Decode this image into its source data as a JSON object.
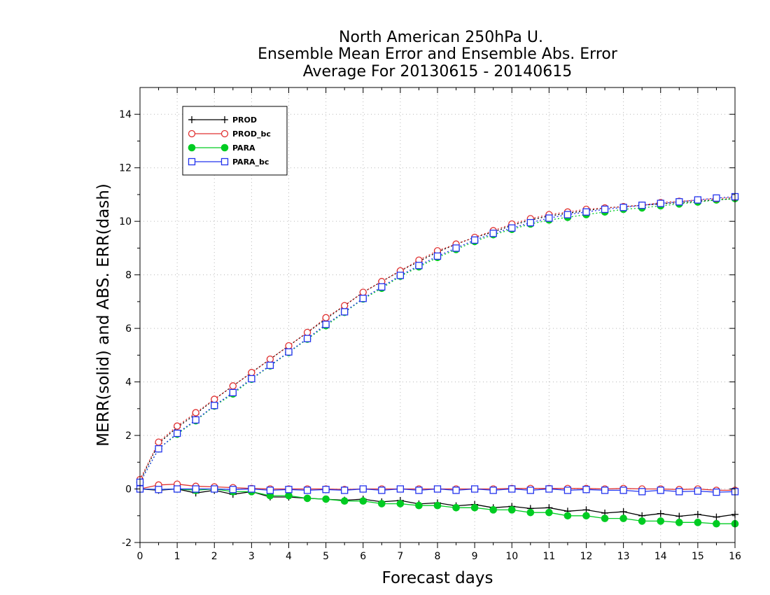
{
  "chart_data": {
    "type": "line",
    "title_lines": [
      "North American 250hPa U.",
      "Ensemble Mean Error and Ensemble Abs. Error",
      "Average For 20130615 - 20140615"
    ],
    "xlabel": "Forecast days",
    "ylabel": "MERR(solid) and ABS. ERR(dash)",
    "xlim": [
      0,
      16
    ],
    "ylim": [
      -2,
      15
    ],
    "xticks": [
      0,
      1,
      2,
      3,
      4,
      5,
      6,
      7,
      8,
      9,
      10,
      11,
      12,
      13,
      14,
      15,
      16
    ],
    "yticks": [
      -2,
      0,
      2,
      4,
      6,
      8,
      10,
      12,
      14
    ],
    "grid": true,
    "legend_position": "top-left",
    "x": [
      0,
      0.5,
      1,
      1.5,
      2,
      2.5,
      3,
      3.5,
      4,
      4.5,
      5,
      5.5,
      6,
      6.5,
      7,
      7.5,
      8,
      8.5,
      9,
      9.5,
      10,
      10.5,
      11,
      11.5,
      12,
      12.5,
      13,
      13.5,
      14,
      14.5,
      15,
      15.5,
      16
    ],
    "series": [
      {
        "name": "PROD",
        "color": "#000000",
        "marker": "plus",
        "mean_error": [
          0.0,
          -0.05,
          0.0,
          -0.15,
          -0.05,
          -0.2,
          -0.1,
          -0.3,
          -0.3,
          -0.35,
          -0.38,
          -0.42,
          -0.38,
          -0.48,
          -0.43,
          -0.56,
          -0.52,
          -0.63,
          -0.58,
          -0.7,
          -0.65,
          -0.73,
          -0.7,
          -0.83,
          -0.78,
          -0.9,
          -0.85,
          -1.0,
          -0.92,
          -1.02,
          -0.95,
          -1.05,
          -0.95
        ],
        "abs_error": [
          0.3,
          1.7,
          2.3,
          2.8,
          3.35,
          3.85,
          4.35,
          4.85,
          5.35,
          5.85,
          6.35,
          6.85,
          7.35,
          7.75,
          8.15,
          8.5,
          8.85,
          9.15,
          9.4,
          9.6,
          9.85,
          10.05,
          10.2,
          10.3,
          10.4,
          10.5,
          10.55,
          10.6,
          10.65,
          10.7,
          10.75,
          10.8,
          10.85
        ]
      },
      {
        "name": "PROD_bc",
        "color": "#e03030",
        "marker": "circle-open",
        "mean_error": [
          0.0,
          0.15,
          0.18,
          0.1,
          0.08,
          0.05,
          0.02,
          0.0,
          0.0,
          0.0,
          0.0,
          -0.02,
          0.0,
          0.0,
          0.0,
          0.0,
          0.0,
          0.0,
          0.0,
          0.0,
          0.02,
          0.02,
          0.02,
          0.02,
          0.02,
          0.0,
          0.02,
          0.0,
          0.0,
          -0.02,
          0.0,
          -0.05,
          -0.05
        ],
        "abs_error": [
          0.35,
          1.75,
          2.35,
          2.85,
          3.35,
          3.85,
          4.35,
          4.85,
          5.35,
          5.85,
          6.4,
          6.85,
          7.35,
          7.75,
          8.15,
          8.55,
          8.9,
          9.15,
          9.4,
          9.65,
          9.9,
          10.1,
          10.25,
          10.35,
          10.45,
          10.5,
          10.55,
          10.6,
          10.7,
          10.75,
          10.8,
          10.85,
          10.9
        ]
      },
      {
        "name": "PARA",
        "color": "#00cc22",
        "marker": "circle-filled",
        "mean_error": [
          0.0,
          -0.02,
          0.0,
          -0.05,
          0.0,
          -0.1,
          -0.1,
          -0.25,
          -0.25,
          -0.35,
          -0.38,
          -0.45,
          -0.45,
          -0.55,
          -0.55,
          -0.62,
          -0.62,
          -0.7,
          -0.7,
          -0.78,
          -0.78,
          -0.88,
          -0.88,
          -1.0,
          -1.0,
          -1.1,
          -1.1,
          -1.2,
          -1.2,
          -1.25,
          -1.25,
          -1.3,
          -1.3
        ],
        "abs_error": [
          0.25,
          1.5,
          2.05,
          2.55,
          3.1,
          3.55,
          4.1,
          4.6,
          5.1,
          5.6,
          6.1,
          6.6,
          7.1,
          7.5,
          7.95,
          8.3,
          8.65,
          8.95,
          9.25,
          9.5,
          9.7,
          9.9,
          10.05,
          10.15,
          10.25,
          10.35,
          10.45,
          10.5,
          10.58,
          10.65,
          10.72,
          10.8,
          10.85
        ]
      },
      {
        "name": "PARA_bc",
        "color": "#2233ee",
        "marker": "square-open",
        "mean_error": [
          0.0,
          -0.02,
          0.0,
          0.0,
          0.0,
          -0.02,
          0.0,
          -0.05,
          -0.02,
          -0.05,
          -0.02,
          -0.05,
          0.0,
          -0.05,
          0.0,
          -0.05,
          0.0,
          -0.05,
          0.0,
          -0.05,
          0.0,
          -0.05,
          0.0,
          -0.05,
          -0.02,
          -0.05,
          -0.05,
          -0.1,
          -0.05,
          -0.1,
          -0.08,
          -0.12,
          -0.1
        ],
        "abs_error": [
          0.25,
          1.5,
          2.08,
          2.58,
          3.12,
          3.6,
          4.12,
          4.62,
          5.12,
          5.62,
          6.15,
          6.62,
          7.12,
          7.55,
          7.98,
          8.35,
          8.7,
          9.0,
          9.3,
          9.55,
          9.75,
          9.95,
          10.12,
          10.25,
          10.35,
          10.45,
          10.52,
          10.6,
          10.67,
          10.73,
          10.8,
          10.87,
          10.92
        ]
      }
    ]
  }
}
